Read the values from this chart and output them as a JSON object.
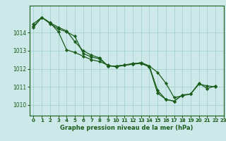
{
  "title": "Graphe pression niveau de la mer (hPa)",
  "bg_color": "#cce8e8",
  "grid_color": "#aad4d4",
  "line_color": "#1a5c1a",
  "marker_color": "#1a5c1a",
  "xlim": [
    -0.5,
    23
  ],
  "ylim": [
    1009.4,
    1015.5
  ],
  "xticks": [
    0,
    1,
    2,
    3,
    4,
    5,
    6,
    7,
    8,
    9,
    10,
    11,
    12,
    13,
    14,
    15,
    16,
    17,
    18,
    19,
    20,
    21,
    22,
    23
  ],
  "yticks": [
    1010,
    1011,
    1012,
    1013,
    1014
  ],
  "series": [
    [
      1014.5,
      1014.85,
      1014.5,
      1014.2,
      1014.05,
      1013.8,
      1012.85,
      1012.65,
      1012.55,
      1012.15,
      1012.15,
      1012.2,
      1012.25,
      1012.3,
      1012.1,
      1010.65,
      1010.3,
      1010.2,
      1010.55,
      1010.6,
      1011.2,
      1010.9,
      1011.05,
      null
    ],
    [
      1014.35,
      1014.85,
      1014.55,
      1014.3,
      1014.1,
      1013.5,
      1013.0,
      1012.75,
      1012.6,
      1012.15,
      1012.15,
      1012.2,
      1012.25,
      1012.35,
      1012.15,
      1010.8,
      1010.3,
      1010.2,
      1010.55,
      null,
      null,
      null,
      null,
      null
    ],
    [
      1014.3,
      1014.85,
      1014.55,
      1014.05,
      1013.05,
      1012.9,
      1012.7,
      1012.5,
      1012.4,
      1012.2,
      1012.1,
      1012.2,
      1012.3,
      1012.3,
      1012.15,
      1011.8,
      1011.2,
      1010.4,
      1010.5,
      1010.6,
      1011.15,
      1011.05,
      1011.0,
      null
    ]
  ],
  "label_fontsize": 5.0,
  "xlabel_fontsize": 6.0,
  "tick_label_color": "#1a5c1a",
  "spine_color": "#1a5c1a"
}
